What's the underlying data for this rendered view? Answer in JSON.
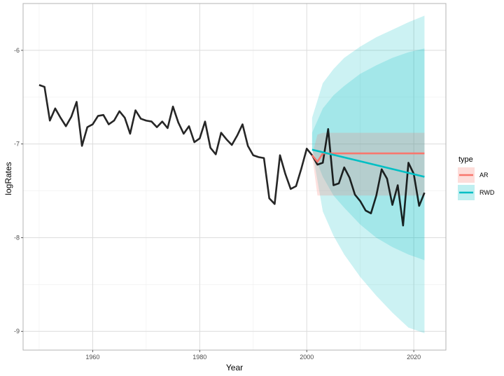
{
  "chart_data": {
    "type": "line",
    "title": "",
    "xlabel": "Year",
    "ylabel": "logRates",
    "xlim": [
      1947,
      2026
    ],
    "ylim": [
      -9.2,
      -5.5
    ],
    "x_ticks": [
      1960,
      1980,
      2000,
      2020
    ],
    "y_ticks": [
      -9,
      -8,
      -7,
      -6
    ],
    "x_tick_labels": [
      "1960",
      "1980",
      "2000",
      "2020"
    ],
    "y_tick_labels": [
      "-9",
      "-8",
      "-7",
      "-6"
    ],
    "grid": true,
    "legend": {
      "title": "type",
      "placement": "right",
      "entries": [
        "AR",
        "RWD"
      ]
    },
    "colors": {
      "observed": "#000000",
      "AR": "#F8766D",
      "AR_fill": "#F8766D",
      "RWD": "#00BFC4",
      "RWD_fill": "#00BFC4",
      "panel_border": "#b3b3b3",
      "grid": "#dcdcdc"
    },
    "observed": {
      "x": [
        1950,
        1951,
        1952,
        1953,
        1954,
        1955,
        1956,
        1957,
        1958,
        1959,
        1960,
        1961,
        1962,
        1963,
        1964,
        1965,
        1966,
        1967,
        1968,
        1969,
        1970,
        1971,
        1972,
        1973,
        1974,
        1975,
        1976,
        1977,
        1978,
        1979,
        1980,
        1981,
        1982,
        1983,
        1984,
        1985,
        1986,
        1987,
        1988,
        1989,
        1990,
        1991,
        1992,
        1993,
        1994,
        1995,
        1996,
        1997,
        1998,
        1999,
        2000,
        2001,
        2002,
        2003,
        2004,
        2005,
        2006,
        2007,
        2008,
        2009,
        2010,
        2011,
        2012,
        2013,
        2014,
        2015,
        2016,
        2017,
        2018,
        2019,
        2020,
        2021,
        2022
      ],
      "y": [
        -6.37,
        -6.39,
        -6.75,
        -6.62,
        -6.72,
        -6.81,
        -6.71,
        -6.55,
        -7.02,
        -6.82,
        -6.79,
        -6.7,
        -6.69,
        -6.79,
        -6.75,
        -6.65,
        -6.72,
        -6.89,
        -6.64,
        -6.73,
        -6.75,
        -6.76,
        -6.82,
        -6.76,
        -6.83,
        -6.6,
        -6.77,
        -6.89,
        -6.81,
        -6.98,
        -6.94,
        -6.76,
        -7.04,
        -7.11,
        -6.88,
        -6.95,
        -7.01,
        -6.91,
        -6.79,
        -7.02,
        -7.12,
        -7.14,
        -7.15,
        -7.58,
        -7.64,
        -7.12,
        -7.32,
        -7.48,
        -7.45,
        -7.26,
        -7.05,
        -7.12,
        -7.22,
        -7.2,
        -6.84,
        -7.44,
        -7.42,
        -7.25,
        -7.36,
        -7.54,
        -7.61,
        -7.71,
        -7.74,
        -7.55,
        -7.27,
        -7.37,
        -7.65,
        -7.44,
        -7.87,
        -7.2,
        -7.32,
        -7.66,
        -7.52
      ]
    },
    "series": [
      {
        "name": "AR",
        "x": [
          2001,
          2002,
          2003,
          2022
        ],
        "y": [
          -7.12,
          -7.19,
          -7.1,
          -7.1
        ],
        "lower": [
          -7.12,
          -7.55,
          -7.55,
          -7.55
        ],
        "upper": [
          -7.12,
          -6.9,
          -6.88,
          -6.88
        ]
      },
      {
        "name": "RWD",
        "x": [
          2001,
          2022
        ],
        "y": [
          -7.06,
          -7.35
        ]
      }
    ],
    "bands": [
      {
        "series": "RWD",
        "level": "outer",
        "x": [
          2001,
          2003,
          2005,
          2007,
          2010,
          2013,
          2016,
          2019,
          2022
        ],
        "lower": [
          -7.06,
          -7.72,
          -7.98,
          -8.18,
          -8.42,
          -8.62,
          -8.8,
          -8.96,
          -9.02
        ],
        "upper": [
          -6.72,
          -6.35,
          -6.2,
          -6.08,
          -5.96,
          -5.86,
          -5.78,
          -5.7,
          -5.63
        ]
      },
      {
        "series": "RWD",
        "level": "inner",
        "x": [
          2001,
          2003,
          2005,
          2007,
          2010,
          2013,
          2016,
          2019,
          2022
        ],
        "lower": [
          -7.06,
          -7.35,
          -7.55,
          -7.68,
          -7.86,
          -8.0,
          -8.1,
          -8.18,
          -8.24
        ],
        "upper": [
          -6.88,
          -6.62,
          -6.48,
          -6.38,
          -6.25,
          -6.16,
          -6.08,
          -6.02,
          -5.98
        ]
      }
    ]
  }
}
